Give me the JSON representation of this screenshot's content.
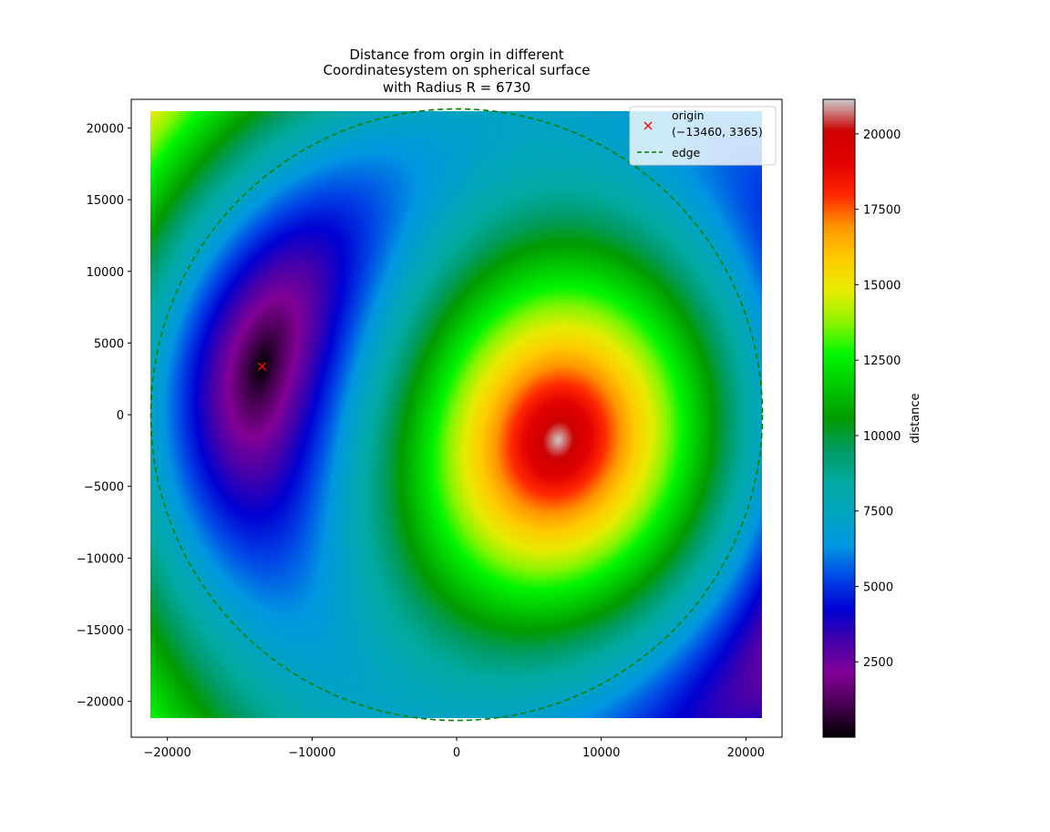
{
  "chart_data": {
    "type": "heatmap",
    "title_lines": [
      "Distance from orgin in different",
      "Coordinatesystem on spherical surface",
      "with Radius R = 6730"
    ],
    "xlim": [
      -22500,
      22500
    ],
    "ylim": [
      -22500,
      22000
    ],
    "extent": [
      -21145,
      21145
    ],
    "x_ticks": [
      -20000,
      -10000,
      0,
      10000,
      20000
    ],
    "x_tick_labels": [
      "−20000",
      "−10000",
      "0",
      "10000",
      "20000"
    ],
    "y_ticks": [
      20000,
      15000,
      10000,
      5000,
      0,
      -5000,
      -10000,
      -15000,
      -20000
    ],
    "y_tick_labels": [
      "20000",
      "15000",
      "10000",
      "5000",
      "0",
      "−5000",
      "−10000",
      "−15000",
      "−20000"
    ],
    "origin_point": {
      "x": -13460,
      "y": 3365
    },
    "edge_circle_radius": 21145,
    "colorbar": {
      "label": "distance",
      "min": 0,
      "max": 21145,
      "ticks": [
        2500,
        5000,
        7500,
        10000,
        12500,
        15000,
        17500,
        20000
      ],
      "tick_labels": [
        "2500",
        "5000",
        "7500",
        "10000",
        "12500",
        "15000",
        "17500",
        "20000"
      ],
      "colormap": "nipy_spectral"
    },
    "legend": {
      "placement": "top-right",
      "entries": [
        {
          "marker": "x",
          "color": "#ff0000",
          "label_line1": "origin",
          "label_line2": "(−13460, 3365)"
        },
        {
          "marker": "dashed-line",
          "color": "#008000",
          "label_line1": "edge"
        }
      ]
    },
    "colors": {
      "origin_marker": "#ff0000",
      "edge_line": "#008000"
    }
  }
}
